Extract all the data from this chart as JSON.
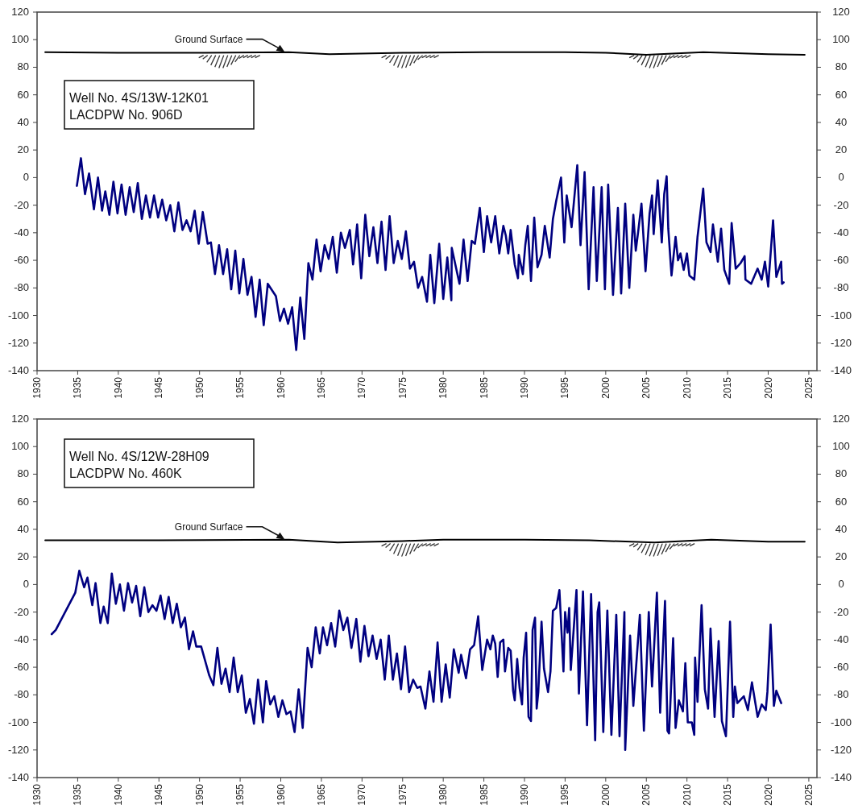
{
  "chart_data": [
    {
      "type": "line",
      "xlim": [
        1930,
        2026
      ],
      "ylim": [
        -140,
        120
      ],
      "y2lim": [
        -140,
        120
      ],
      "xticks": [
        1930,
        1935,
        1940,
        1945,
        1950,
        1955,
        1960,
        1965,
        1970,
        1975,
        1980,
        1985,
        1990,
        1995,
        2000,
        2005,
        2010,
        2015,
        2020,
        2025
      ],
      "yticks": [
        -140,
        -120,
        -100,
        -80,
        -60,
        -40,
        -20,
        0,
        20,
        40,
        60,
        80,
        100,
        120
      ],
      "y2ticks": [
        -140,
        -120,
        -100,
        -80,
        -60,
        -40,
        -20,
        0,
        20,
        40,
        60,
        80,
        100,
        120
      ],
      "grid": false,
      "marker": "none",
      "line_style": "solid",
      "annotations": [
        "Well No. 4S/13W-12K01",
        "LACDPW No. 906D",
        {
          "text": "Ground Surface",
          "x": 1960.5,
          "y": 91
        }
      ],
      "series": [
        {
          "color": "#000000",
          "x": [
            1931,
            1940,
            1950,
            1961,
            1966,
            1975,
            1985,
            1995,
            2000,
            2005,
            2012,
            2020,
            2024.5
          ],
          "values": [
            91,
            90.5,
            90.5,
            91,
            89.5,
            90.5,
            91,
            91,
            90.5,
            89,
            91,
            89.5,
            89
          ]
        },
        {
          "color": "#000080",
          "x": [
            1934.9,
            1935.4,
            1935.9,
            1936.4,
            1937.0,
            1937.5,
            1938.0,
            1938.4,
            1938.9,
            1939.4,
            1939.9,
            1940.4,
            1940.9,
            1941.4,
            1941.9,
            1942.4,
            1942.9,
            1943.4,
            1943.9,
            1944.4,
            1944.9,
            1945.4,
            1945.9,
            1946.4,
            1946.9,
            1947.4,
            1947.9,
            1948.4,
            1948.9,
            1949.4,
            1949.9,
            1950.4,
            1951.0,
            1951.4,
            1951.9,
            1952.4,
            1952.9,
            1953.4,
            1953.9,
            1954.4,
            1954.9,
            1955.4,
            1955.9,
            1956.4,
            1956.9,
            1957.4,
            1957.9,
            1958.4,
            1959.4,
            1959.9,
            1960.4,
            1960.9,
            1961.4,
            1961.9,
            1962.4,
            1962.9,
            1963.4,
            1963.9,
            1964.4,
            1964.9,
            1965.4,
            1965.9,
            1966.4,
            1966.9,
            1967.4,
            1967.9,
            1968.5,
            1968.9,
            1969.4,
            1969.9,
            1970.4,
            1970.9,
            1971.4,
            1971.9,
            1972.4,
            1972.9,
            1973.4,
            1973.9,
            1974.4,
            1974.9,
            1975.4,
            1975.9,
            1976.4,
            1976.9,
            1977.4,
            1978.0,
            1978.4,
            1978.9,
            1979.5,
            1980.0,
            1980.5,
            1981.0,
            1981.05,
            1982.0,
            1982.5,
            1983.0,
            1983.5,
            1983.9,
            1984.5,
            1985.0,
            1985.4,
            1985.9,
            1986.4,
            1986.9,
            1987.4,
            1987.7,
            1988.0,
            1988.3,
            1988.8,
            1989.2,
            1989.3,
            1989.8,
            1990.1,
            1990.4,
            1990.8,
            1991.2,
            1991.6,
            1992.1,
            1992.5,
            1993.1,
            1993.5,
            1993.9,
            1994.5,
            1994.9,
            1995.2,
            1995.8,
            1996.5,
            1996.9,
            1997.4,
            1997.9,
            1998.5,
            1998.9,
            1999.5,
            1999.9,
            2000.3,
            2000.9,
            2001.5,
            2001.9,
            2002.4,
            2002.9,
            2003.4,
            2003.7,
            2004.0,
            2004.4,
            2004.9,
            2005.4,
            2005.7,
            2005.9,
            2006.4,
            2006.9,
            2007.2,
            2007.5,
            2007.7,
            2008.1,
            2008.6,
            2008.9,
            2009.2,
            2009.6,
            2010.0,
            2010.3,
            2010.9,
            2011.3,
            2012.0,
            2012.4,
            2012.9,
            2013.2,
            2013.8,
            2014.2,
            2014.6,
            2015.2,
            2015.5,
            2016.0,
            2016.6,
            2017.1,
            2017.2,
            2017.9,
            2018.7,
            2019.2,
            2019.6,
            2020.0,
            2020.6,
            2021.0,
            2021.6,
            2021.7,
            2021.9
          ],
          "values": [
            -6,
            14,
            -12,
            3,
            -23,
            0,
            -24,
            -10,
            -27,
            -3,
            -26,
            -5,
            -27,
            -7,
            -25,
            -4,
            -30,
            -13,
            -29,
            -13,
            -29,
            -16,
            -31,
            -20,
            -39,
            -18,
            -38,
            -31,
            -39,
            -24,
            -48,
            -25,
            -48,
            -47,
            -70,
            -49,
            -70,
            -52,
            -81,
            -53,
            -84,
            -59,
            -85,
            -72,
            -101,
            -74,
            -107,
            -77,
            -86,
            -104,
            -95,
            -106,
            -94,
            -125,
            -87,
            -117,
            -62,
            -74,
            -45,
            -68,
            -49,
            -59,
            -43,
            -69,
            -40,
            -51,
            -38,
            -63,
            -34,
            -73,
            -27,
            -57,
            -36,
            -62,
            -32,
            -67,
            -28,
            -62,
            -46,
            -59,
            -39,
            -66,
            -61,
            -80,
            -72,
            -90,
            -56,
            -91,
            -48,
            -88,
            -58,
            -89,
            -51,
            -77,
            -45,
            -75,
            -46,
            -48,
            -22,
            -54,
            -28,
            -47,
            -28,
            -55,
            -35,
            -42,
            -55,
            -38,
            -63,
            -73,
            -56,
            -70,
            -49,
            -35,
            -75,
            -29,
            -65,
            -56,
            -35,
            -58,
            -30,
            -17,
            0,
            -47,
            -13,
            -36,
            9,
            -49,
            4,
            -81,
            -7,
            -75,
            -7,
            -81,
            -5,
            -85,
            -22,
            -84,
            -19,
            -80,
            -27,
            -53,
            -39,
            -19,
            -68,
            -26,
            -13,
            -41,
            -2,
            -47,
            -12,
            1,
            -37,
            -71,
            -43,
            -60,
            -55,
            -67,
            -55,
            -71,
            -74,
            -43,
            -8,
            -47,
            -54,
            -34,
            -61,
            -37,
            -67,
            -77,
            -33,
            -66,
            -62,
            -57,
            -74,
            -77,
            -66,
            -74,
            -61,
            -79,
            -31,
            -72,
            -61,
            -77,
            -76
          ]
        }
      ]
    },
    {
      "type": "line",
      "xlim": [
        1930,
        2026
      ],
      "ylim": [
        -140,
        120
      ],
      "y2lim": [
        -140,
        120
      ],
      "xticks": [
        1930,
        1935,
        1940,
        1945,
        1950,
        1955,
        1960,
        1965,
        1970,
        1975,
        1980,
        1985,
        1990,
        1995,
        2000,
        2005,
        2010,
        2015,
        2020,
        2025
      ],
      "yticks": [
        -140,
        -120,
        -100,
        -80,
        -60,
        -40,
        -20,
        0,
        20,
        40,
        60,
        80,
        100,
        120
      ],
      "y2ticks": [
        -140,
        -120,
        -100,
        -80,
        -60,
        -40,
        -20,
        0,
        20,
        40,
        60,
        80,
        100,
        120
      ],
      "grid": false,
      "marker": "none",
      "line_style": "solid",
      "annotations": [
        "Well No. 4S/12W-28H09",
        "LACDPW No. 460K",
        {
          "text": "Ground Surface",
          "x": 1960.5,
          "y": 32.5
        }
      ],
      "series": [
        {
          "color": "#000000",
          "x": [
            1931,
            1945,
            1961,
            1967,
            1975,
            1980,
            1990,
            1998,
            2006,
            2013,
            2020,
            2024.5
          ],
          "values": [
            32,
            32,
            32.5,
            30.5,
            31.5,
            32.5,
            32.5,
            32,
            30.5,
            32.5,
            31,
            31
          ]
        },
        {
          "color": "#000080",
          "x": [
            1931.8,
            1932.3,
            1934.7,
            1935.2,
            1935.8,
            1936.2,
            1936.8,
            1937.2,
            1937.8,
            1938.2,
            1938.7,
            1939.2,
            1939.7,
            1940.2,
            1940.7,
            1941.2,
            1941.7,
            1942.2,
            1942.7,
            1943.2,
            1943.7,
            1944.2,
            1944.7,
            1945.2,
            1945.7,
            1946.2,
            1946.7,
            1947.2,
            1947.7,
            1948.2,
            1948.7,
            1949.2,
            1949.6,
            1950.2,
            1951.2,
            1951.7,
            1952.2,
            1952.7,
            1953.2,
            1953.7,
            1954.2,
            1954.7,
            1955.2,
            1955.7,
            1956.2,
            1956.7,
            1957.2,
            1957.8,
            1958.2,
            1958.7,
            1959.2,
            1959.7,
            1960.2,
            1960.7,
            1961.2,
            1961.7,
            1962.2,
            1962.7,
            1963.3,
            1963.8,
            1964.3,
            1964.8,
            1965.2,
            1965.7,
            1966.2,
            1966.7,
            1967.2,
            1967.7,
            1968.2,
            1968.7,
            1969.3,
            1969.8,
            1970.3,
            1970.8,
            1971.3,
            1971.8,
            1972.3,
            1972.8,
            1973.3,
            1973.8,
            1974.3,
            1974.8,
            1975.3,
            1975.8,
            1976.3,
            1976.8,
            1977.2,
            1977.8,
            1978.3,
            1978.8,
            1979.3,
            1979.8,
            1980.3,
            1980.8,
            1981.3,
            1981.9,
            1982.2,
            1982.8,
            1983.3,
            1983.8,
            1984.3,
            1984.8,
            1985.4,
            1985.8,
            1986.1,
            1986.4,
            1986.7,
            1987.0,
            1987.4,
            1987.6,
            1988.0,
            1988.3,
            1988.6,
            1988.8,
            1989.1,
            1989.4,
            1989.7,
            1989.9,
            1990.2,
            1990.5,
            1990.8,
            1991.0,
            1991.3,
            1991.5,
            1991.7,
            1992.1,
            1992.4,
            1992.9,
            1993.2,
            1993.5,
            1993.9,
            1994.3,
            1994.8,
            1995.0,
            1995.3,
            1995.5,
            1995.7,
            1996.4,
            1996.7,
            1997.2,
            1997.7,
            1998.2,
            1998.7,
            1999.0,
            1999.2,
            1999.7,
            2000.2,
            2000.7,
            2001.3,
            2001.7,
            2002.3,
            2002.4,
            2003.0,
            2003.4,
            2003.7,
            2004.2,
            2004.7,
            2005.3,
            2005.7,
            2006.3,
            2006.7,
            2007.3,
            2007.6,
            2007.8,
            2008.3,
            2008.6,
            2009.0,
            2009.5,
            2009.8,
            2010.1,
            2010.6,
            2010.9,
            2011.0,
            2011.3,
            2011.8,
            2012.2,
            2012.6,
            2012.9,
            2013.4,
            2013.9,
            2014.3,
            2014.8,
            2015.3,
            2015.7,
            2015.9,
            2016.2,
            2017.0,
            2017.5,
            2018.0,
            2018.7,
            2019.2,
            2019.7,
            2019.9,
            2020.3,
            2020.7,
            2021.0,
            2021.6
          ],
          "values": [
            -36,
            -33,
            -6,
            10,
            -2,
            5,
            -15,
            1,
            -28,
            -16,
            -28,
            8,
            -14,
            0,
            -19,
            1,
            -13,
            -1,
            -23,
            -2,
            -20,
            -15,
            -19,
            -8,
            -25,
            -9,
            -28,
            -14,
            -31,
            -24,
            -47,
            -34,
            -45,
            -45,
            -66,
            -73,
            -46,
            -72,
            -61,
            -78,
            -53,
            -78,
            -66,
            -93,
            -83,
            -101,
            -69,
            -100,
            -70,
            -87,
            -81,
            -96,
            -84,
            -94,
            -92,
            -107,
            -76,
            -104,
            -46,
            -60,
            -31,
            -50,
            -31,
            -44,
            -28,
            -45,
            -19,
            -33,
            -24,
            -46,
            -25,
            -56,
            -30,
            -52,
            -37,
            -54,
            -40,
            -69,
            -37,
            -69,
            -50,
            -76,
            -45,
            -78,
            -69,
            -75,
            -74,
            -90,
            -63,
            -85,
            -42,
            -85,
            -58,
            -82,
            -47,
            -64,
            -51,
            -68,
            -47,
            -44,
            -23,
            -62,
            -40,
            -47,
            -37,
            -43,
            -67,
            -42,
            -40,
            -63,
            -46,
            -48,
            -77,
            -84,
            -54,
            -75,
            -87,
            -53,
            -35,
            -96,
            -99,
            -33,
            -24,
            -90,
            -78,
            -27,
            -61,
            -78,
            -63,
            -19,
            -17,
            -4,
            -63,
            -20,
            -35,
            -17,
            -62,
            -4,
            -79,
            -5,
            -102,
            -7,
            -113,
            -20,
            -13,
            -107,
            -19,
            -109,
            -22,
            -110,
            -20,
            -120,
            -37,
            -88,
            -63,
            -22,
            -106,
            -20,
            -74,
            -6,
            -93,
            -12,
            -106,
            -108,
            -39,
            -104,
            -84,
            -92,
            -57,
            -100,
            -100,
            -109,
            -53,
            -85,
            -15,
            -76,
            -90,
            -32,
            -96,
            -41,
            -99,
            -110,
            -27,
            -96,
            -74,
            -86,
            -81,
            -91,
            -71,
            -96,
            -87,
            -91,
            -78,
            -29,
            -88,
            -77,
            -86
          ]
        }
      ]
    }
  ]
}
